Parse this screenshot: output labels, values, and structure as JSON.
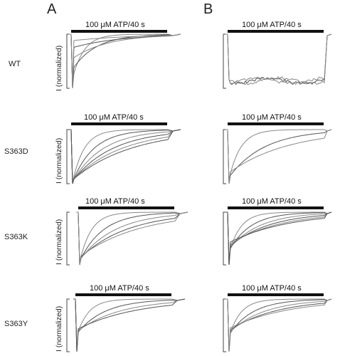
{
  "figure": {
    "panels": [
      {
        "letter": "A"
      },
      {
        "letter": "B"
      }
    ],
    "rows": [
      {
        "genotype": "WT",
        "y_label": "I (normalized)",
        "left": {
          "stimulus": "100 μM ATP/40 s",
          "desensitization": [
            0.18,
            0.35,
            0.55,
            0.75,
            0.88
          ],
          "noisy": false
        },
        "right": {
          "stimulus": "100 μM ATP/40 s",
          "desensitization": [
            0.93,
            0.95,
            0.97
          ],
          "noisy": true
        }
      },
      {
        "genotype": "S363D",
        "y_label": "I (normalized)",
        "left": {
          "stimulus": "100 μM ATP/40 s",
          "desensitization": [
            0.02,
            0.03,
            0.04,
            0.05,
            0.06,
            0.07
          ],
          "noisy": false
        },
        "right": {
          "stimulus": "100 μM ATP/40 s",
          "desensitization": [
            0.08,
            0.12,
            0.2
          ],
          "noisy": false
        }
      },
      {
        "genotype": "S363K",
        "y_label": "I (normalized)",
        "left": {
          "stimulus": "100 μM ATP/40 s",
          "desensitization": [
            0.05,
            0.07,
            0.09,
            0.12,
            0.15
          ],
          "noisy": false
        },
        "right": {
          "stimulus": "100 μM ATP/40 s",
          "desensitization": [
            0.22,
            0.26,
            0.3,
            0.34,
            0.38,
            0.42
          ],
          "noisy": false
        }
      },
      {
        "genotype": "S363Y",
        "y_label": "I (normalized)",
        "left": {
          "stimulus": "100 μM ATP/40 s",
          "desensitization": [
            0.3,
            0.34,
            0.38,
            0.42
          ],
          "noisy": false
        },
        "right": {
          "stimulus": "100 μM ATP/40 s",
          "desensitization": [
            0.28,
            0.32,
            0.36,
            0.4,
            0.44
          ],
          "noisy": false
        }
      }
    ]
  }
}
